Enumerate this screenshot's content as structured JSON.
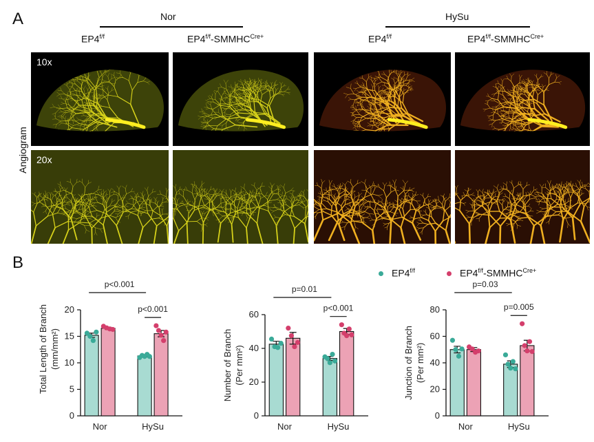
{
  "panel_a": {
    "letter": "A",
    "groups": [
      {
        "name": "Nor",
        "columns": [
          {
            "base": "EP4",
            "sup": "f/f",
            "suffix": "",
            "sup2": ""
          },
          {
            "base": "EP4",
            "sup": "f/f",
            "suffix": "-SMMHC",
            "sup2": "Cre+"
          }
        ]
      },
      {
        "name": "HySu",
        "columns": [
          {
            "base": "EP4",
            "sup": "f/f",
            "suffix": "",
            "sup2": ""
          },
          {
            "base": "EP4",
            "sup": "f/f",
            "suffix": "-SMMHC",
            "sup2": "Cre+"
          }
        ]
      }
    ],
    "row_label": "Angiogram",
    "magnifications": [
      "10x",
      "20x"
    ]
  },
  "panel_b": {
    "letter": "B",
    "legend": [
      {
        "base": "EP4",
        "sup": "f/f",
        "suffix": "",
        "sup2": "",
        "color": "#3aaa98"
      },
      {
        "base": "EP4",
        "sup": "f/f",
        "suffix": "-SMMHC",
        "sup2": "Cre+",
        "color": "#d43f6c"
      }
    ]
  },
  "colors": {
    "teal_fill": "#a8dbd2",
    "teal_dot": "#3aaa98",
    "pink_fill": "#eca2b5",
    "pink_dot": "#d43f6c"
  },
  "chart_data": [
    {
      "type": "bar",
      "ylabel_line1": "Total Length of Branch",
      "ylabel_line2": "(mm/mm²)",
      "categories": [
        "Nor",
        "HySu"
      ],
      "ylim": [
        0,
        20
      ],
      "yticks": [
        0,
        5,
        10,
        15,
        20
      ],
      "series": [
        {
          "name": "EP4f/f",
          "values": [
            15.2,
            11.3
          ],
          "errors": [
            0.4,
            0.2
          ],
          "points": [
            [
              15.6,
              15.0,
              14.2,
              15.8
            ],
            [
              11.0,
              11.4,
              11.2,
              11.6,
              11.2
            ]
          ]
        },
        {
          "name": "EP4f/f-SMMHCCre+",
          "values": [
            16.5,
            15.5
          ],
          "errors": [
            0.2,
            0.6
          ],
          "points": [
            [
              16.9,
              16.6,
              16.4,
              16.3
            ],
            [
              17.0,
              16.1,
              15.2,
              14.2,
              15.8
            ]
          ]
        }
      ],
      "comparisons": [
        {
          "label": "p<0.001",
          "type": "across"
        },
        {
          "label": "p<0.001",
          "type": "within-HySu"
        }
      ]
    },
    {
      "type": "bar",
      "ylabel_line1": "Number of Branch",
      "ylabel_line2": "(Per mm²)",
      "categories": [
        "Nor",
        "HySu"
      ],
      "ylim": [
        0,
        60
      ],
      "yticks": [
        0,
        20,
        40,
        60
      ],
      "series": [
        {
          "name": "EP4f/f",
          "values": [
            42.5,
            34
          ],
          "errors": [
            1.7,
            1.2
          ],
          "points": [
            [
              45.5,
              41.0,
              40.5,
              43.0
            ],
            [
              35.0,
              34.0,
              31.5,
              36.5,
              32.5
            ]
          ]
        },
        {
          "name": "EP4f/f-SMMHCCre+",
          "values": [
            46,
            50
          ],
          "errors": [
            3.5,
            1.8
          ],
          "points": [
            [
              52.0,
              47.5,
              41.0,
              43.5
            ],
            [
              54.0,
              49.0,
              47.5,
              51.5,
              48.0
            ]
          ]
        }
      ],
      "comparisons": [
        {
          "label": "p=0.01",
          "type": "across"
        },
        {
          "label": "p<0.001",
          "type": "within-HySu"
        }
      ]
    },
    {
      "type": "bar",
      "ylabel_line1": "Junction of Branch",
      "ylabel_line2": "(Per mm²)",
      "categories": [
        "Nor",
        "HySu"
      ],
      "ylim": [
        0,
        80
      ],
      "yticks": [
        0,
        20,
        40,
        60,
        80
      ],
      "series": [
        {
          "name": "EP4f/f",
          "values": [
            50,
            39
          ],
          "errors": [
            2.5,
            2.5
          ],
          "points": [
            [
              57.0,
              50.0,
              45.0,
              50.5
            ],
            [
              46.0,
              39.0,
              36.0,
              41.0,
              35.5
            ]
          ]
        },
        {
          "name": "EP4f/f-SMMHCCre+",
          "values": [
            50,
            53
          ],
          "errors": [
            1.5,
            4.0
          ],
          "points": [
            [
              52.0,
              50.5,
              48.0,
              49.0
            ],
            [
              69.5,
              53.0,
              49.0,
              56.0,
              48.5
            ]
          ]
        }
      ],
      "comparisons": [
        {
          "label": "p=0.03",
          "type": "across"
        },
        {
          "label": "p=0.005",
          "type": "within-HySu"
        }
      ]
    }
  ]
}
